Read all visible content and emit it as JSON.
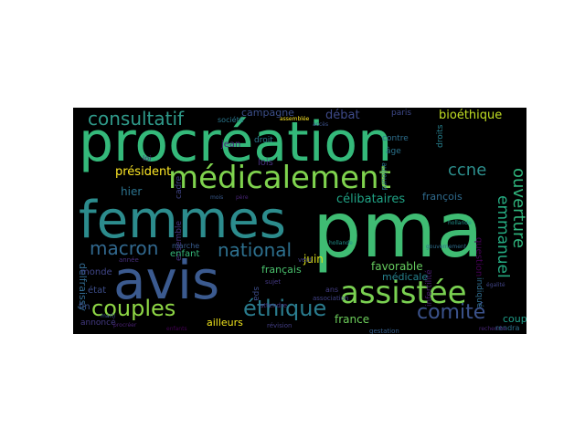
{
  "word_cloud": {
    "background": "#000000",
    "words": [
      {
        "text": "procréation",
        "color": "#34b97a"
      },
      {
        "text": "pma",
        "color": "#3fbc73"
      },
      {
        "text": "femmes",
        "color": "#2c8c8d"
      },
      {
        "text": "avis",
        "color": "#3b5a8f"
      },
      {
        "text": "médicalement",
        "color": "#7fd34e"
      },
      {
        "text": "assistée",
        "color": "#7ad151"
      },
      {
        "text": "couples",
        "color": "#8ed645"
      },
      {
        "text": "éthique",
        "color": "#2a7c8e"
      },
      {
        "text": "consultatif",
        "color": "#2f9a8a"
      },
      {
        "text": "comité",
        "color": "#3b528b"
      },
      {
        "text": "macron",
        "color": "#31688e"
      },
      {
        "text": "national",
        "color": "#2d708e"
      },
      {
        "text": "ccne",
        "color": "#2c8e8c"
      },
      {
        "text": "ouverture",
        "color": "#2fb47c"
      },
      {
        "text": "emmanuel",
        "color": "#25ac82"
      },
      {
        "text": "président",
        "color": "#fde725"
      },
      {
        "text": "célibataires",
        "color": "#20a486"
      },
      {
        "text": "bioéthique",
        "color": "#c2df23"
      },
      {
        "text": "débat",
        "color": "#3e4a89"
      },
      {
        "text": "campagne",
        "color": "#3c4f8a"
      },
      {
        "text": "hier",
        "color": "#2c738e"
      },
      {
        "text": "françois",
        "color": "#2f6b8e"
      },
      {
        "text": "lois",
        "color": "#46307e"
      },
      {
        "text": "jean",
        "color": "#482878"
      },
      {
        "text": "juin",
        "color": "#dde318"
      },
      {
        "text": "favorable",
        "color": "#65cb5e"
      },
      {
        "text": "français",
        "color": "#4ac16d"
      },
      {
        "text": "enfant",
        "color": "#35b779"
      },
      {
        "text": "monde",
        "color": "#404688"
      },
      {
        "text": "état",
        "color": "#3d4e8a"
      },
      {
        "text": "fin",
        "color": "#3b528b"
      },
      {
        "text": "couple",
        "color": "#1f9e89"
      },
      {
        "text": "france",
        "color": "#6ccd5a"
      },
      {
        "text": "médicale",
        "color": "#26828e"
      },
      {
        "text": "ailleurs",
        "color": "#f1e51d"
      },
      {
        "text": "annoncé",
        "color": "#443a83"
      },
      {
        "text": "delfraissy",
        "color": "#31688e"
      },
      {
        "text": "question",
        "color": "#440154"
      },
      {
        "text": "contre",
        "color": "#2e6f8e"
      },
      {
        "text": "âge",
        "color": "#2b748e"
      },
      {
        "text": "paris",
        "color": "#3e4989"
      },
      {
        "text": "droit",
        "color": "#2a768e"
      },
      {
        "text": "société",
        "color": "#2a788e"
      },
      {
        "text": "loi",
        "color": "#472d7b"
      },
      {
        "text": "marche",
        "color": "#375b8d"
      },
      {
        "text": "année",
        "color": "#472f7d"
      },
      {
        "text": "ans",
        "color": "#433d84"
      },
      {
        "text": "spa",
        "color": "#3d4d8a"
      },
      {
        "text": "rendra",
        "color": "#2d6f8e"
      },
      {
        "text": "indiqué",
        "color": "#2f6c8e"
      },
      {
        "text": "infertilité",
        "color": "#481c6e"
      },
      {
        "text": "gestation",
        "color": "#355f8d"
      },
      {
        "text": "attendre",
        "color": "#453581"
      },
      {
        "text": "association",
        "color": "#414287"
      },
      {
        "text": "sujet",
        "color": "#443983"
      },
      {
        "text": "veut",
        "color": "#424086"
      },
      {
        "text": "révision",
        "color": "#433e85"
      },
      {
        "text": "procréer",
        "color": "#482071"
      },
      {
        "text": "ensemble",
        "color": "#46337f"
      },
      {
        "text": "passions",
        "color": "#472a7a"
      },
      {
        "text": "cadre",
        "color": "#404588"
      },
      {
        "text": "marti",
        "color": "#3a548c"
      },
      {
        "text": "père",
        "color": "#482576"
      },
      {
        "text": "assemblée",
        "color": "#fde725"
      },
      {
        "text": "mois",
        "color": "#38598c"
      },
      {
        "text": "hollande",
        "color": "#21918c"
      },
      {
        "text": "droits",
        "color": "#27808e"
      },
      {
        "text": "aujourd",
        "color": "#2a788e"
      },
      {
        "text": "gouvernement",
        "color": "#2e6e8e"
      },
      {
        "text": "accès",
        "color": "#3b528b"
      },
      {
        "text": "égalité",
        "color": "#414487"
      },
      {
        "text": "enfants",
        "color": "#440154"
      },
      {
        "text": "recherche",
        "color": "#482576"
      }
    ]
  }
}
